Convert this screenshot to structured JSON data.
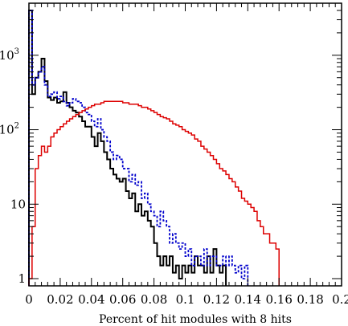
{
  "chart_data": {
    "type": "line",
    "title": "",
    "xlabel": "Percent of hit modules with 8 hits",
    "ylabel": "",
    "xlim": [
      0,
      0.2
    ],
    "ylim": [
      0.8,
      5000
    ],
    "yscale": "log",
    "grid": false,
    "legend": "none",
    "x_ticks": [
      0,
      0.02,
      0.04,
      0.06,
      0.08,
      0.1,
      0.12,
      0.14,
      0.16,
      0.18,
      0.2
    ],
    "x_tick_labels": [
      "0",
      "0.02",
      "0.04",
      "0.06",
      "0.08",
      "0.1",
      "0.12",
      "0.14",
      "0.16",
      "0.18",
      "0.2"
    ],
    "y_ticks": [
      1,
      10,
      100,
      1000
    ],
    "y_tick_labels": [
      {
        "base": "1",
        "exp": ""
      },
      {
        "base": "10",
        "exp": ""
      },
      {
        "base": "10",
        "exp": "2"
      },
      {
        "base": "10",
        "exp": "3"
      }
    ],
    "bin_width": 0.002,
    "series": [
      {
        "color": "#000000",
        "dash": "",
        "width": 2,
        "values": [
          4000,
          300,
          500,
          600,
          900,
          450,
          270,
          250,
          270,
          230,
          240,
          320,
          230,
          200,
          180,
          170,
          150,
          130,
          110,
          110,
          80,
          60,
          90,
          70,
          50,
          40,
          30,
          25,
          22,
          20,
          22,
          15,
          12,
          14,
          8,
          10,
          7,
          8,
          6,
          5,
          3,
          2,
          1.5,
          2,
          1.5,
          2,
          1.2,
          1.5,
          1,
          1.5,
          1.2,
          1.5,
          1.2,
          2,
          1.5,
          1.5,
          1.2,
          2,
          1.2,
          2.5,
          1.5,
          1.2,
          1.5
        ]
      },
      {
        "color": "#0000cc",
        "dash": "3,2",
        "width": 1.8,
        "values": [
          4000,
          400,
          500,
          600,
          700,
          400,
          280,
          300,
          320,
          260,
          280,
          240,
          210,
          230,
          260,
          240,
          230,
          200,
          170,
          160,
          130,
          110,
          140,
          100,
          80,
          70,
          50,
          40,
          45,
          40,
          30,
          30,
          20,
          25,
          18,
          20,
          12,
          14,
          10,
          8,
          7,
          5,
          8,
          6,
          5,
          3,
          4,
          3,
          2.5,
          3,
          2,
          2.5,
          1.5,
          2,
          2,
          1.5,
          2.5,
          1.5,
          2,
          2,
          1.5,
          1.5,
          2,
          1.5,
          2,
          1.5,
          1.2,
          1.5,
          1,
          1.5
        ]
      },
      {
        "color": "#dd0000",
        "dash": "",
        "width": 1.5,
        "values": [
          1,
          5,
          30,
          45,
          60,
          50,
          60,
          80,
          90,
          100,
          110,
          120,
          130,
          140,
          150,
          160,
          170,
          180,
          190,
          200,
          210,
          220,
          220,
          230,
          240,
          240,
          240,
          240,
          240,
          240,
          230,
          230,
          220,
          220,
          220,
          210,
          200,
          200,
          190,
          180,
          170,
          160,
          150,
          145,
          140,
          130,
          120,
          115,
          110,
          100,
          95,
          90,
          85,
          75,
          70,
          60,
          55,
          50,
          45,
          40,
          35,
          30,
          28,
          25,
          22,
          20,
          17,
          15,
          12,
          11,
          10,
          9,
          8,
          6,
          5,
          4,
          4,
          3,
          3,
          2.5
        ]
      }
    ]
  }
}
